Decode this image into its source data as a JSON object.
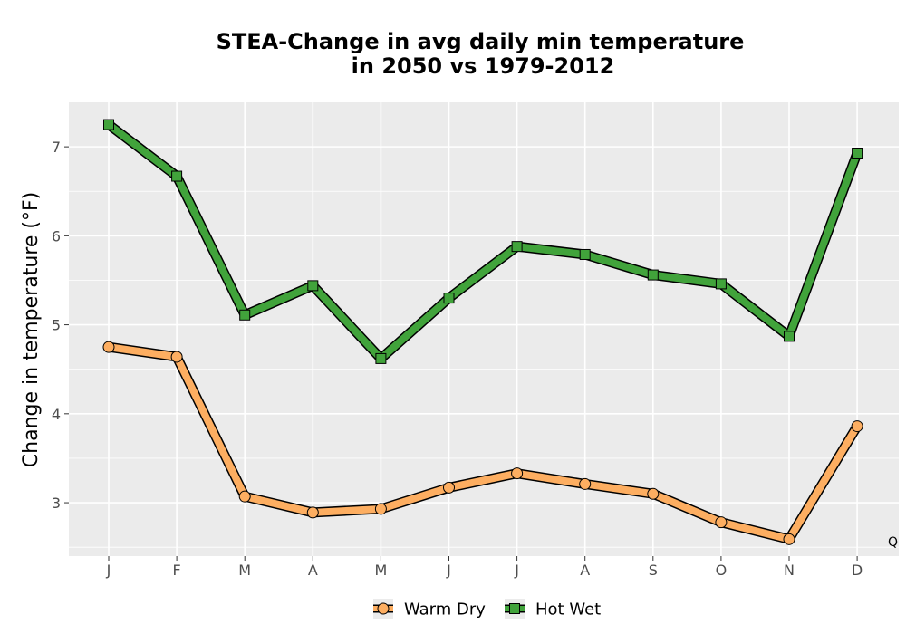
{
  "chart_data": {
    "type": "line",
    "title_line1": "STEA-Change in avg daily min temperature",
    "title_line2": "in 2050 vs 1979-2012",
    "xlabel": "",
    "ylabel": "Change in temperature (°F)",
    "categories": [
      "J",
      "F",
      "M",
      "A",
      "M",
      "J",
      "J",
      "A",
      "S",
      "O",
      "N",
      "D"
    ],
    "ylim": [
      2.4,
      7.5
    ],
    "yticks": [
      "3",
      "4",
      "5",
      "6",
      "7"
    ],
    "grid": true,
    "legend_position": "bottom",
    "corner_label": "Q",
    "series": [
      {
        "name": "Warm Dry",
        "color": "#FDAE61",
        "marker": "circle",
        "values": [
          4.75,
          4.64,
          3.07,
          2.89,
          2.93,
          3.17,
          3.33,
          3.21,
          3.1,
          2.78,
          2.59,
          3.86
        ]
      },
      {
        "name": "Hot Wet",
        "color": "#41A33B",
        "marker": "square",
        "values": [
          7.25,
          6.67,
          5.11,
          5.44,
          4.62,
          5.3,
          5.88,
          5.79,
          5.56,
          5.46,
          4.87,
          6.93
        ]
      }
    ]
  }
}
